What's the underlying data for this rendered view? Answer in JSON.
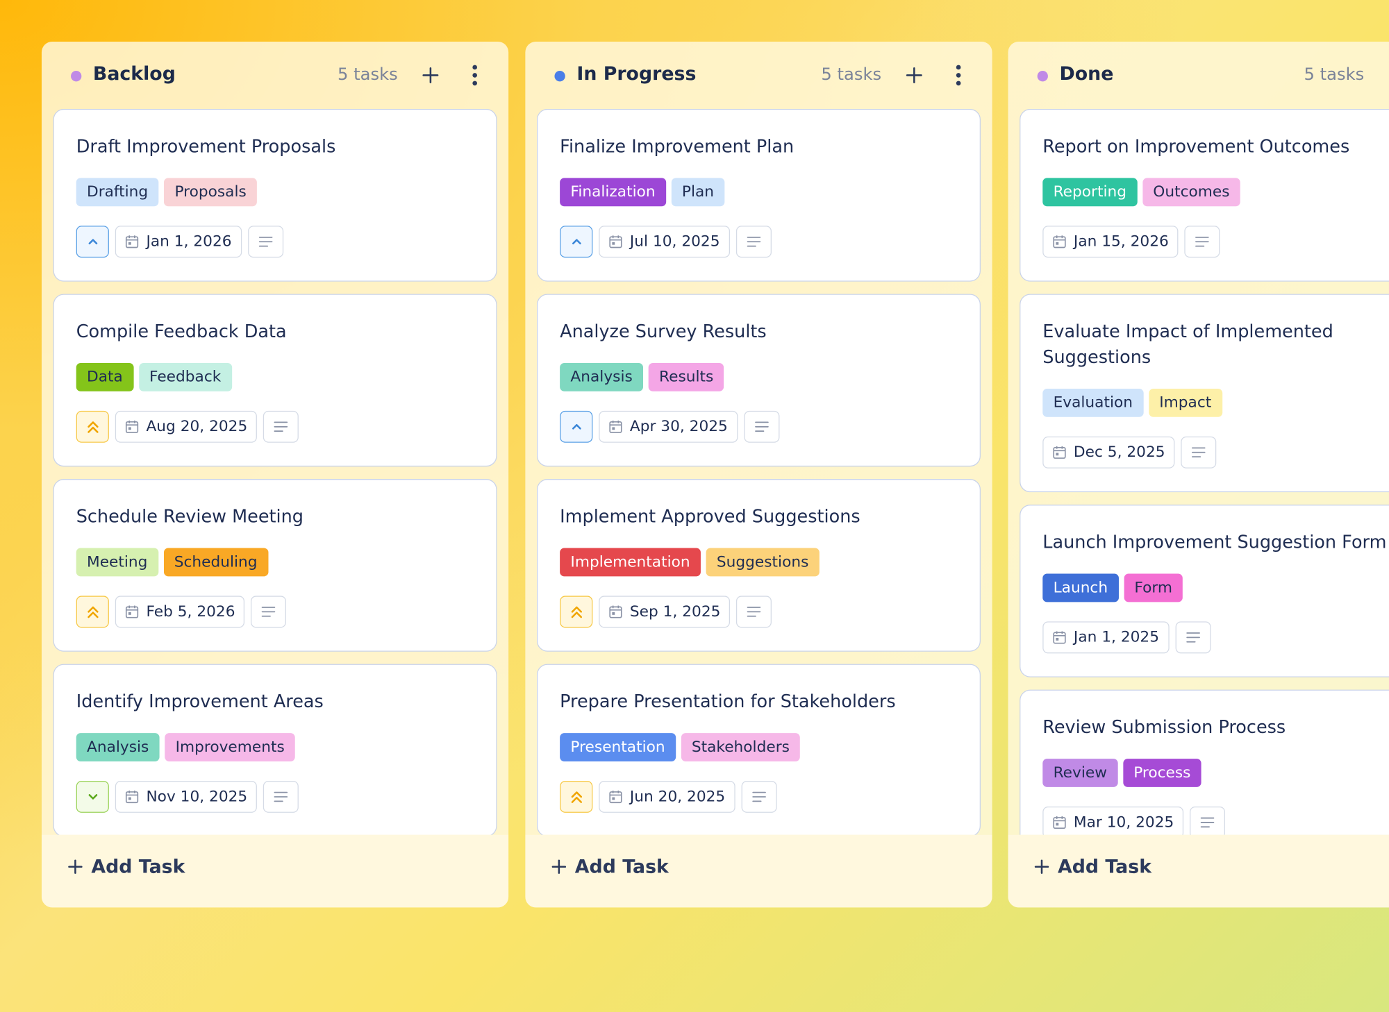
{
  "add_task": "Add Task",
  "columns": [
    {
      "name": "Backlog",
      "dot": "#c08ae6",
      "count": "5 tasks",
      "cards": [
        {
          "title": "Draft Improvement Proposals",
          "tags": [
            {
              "text": "Drafting",
              "color": "#cfe4fb"
            },
            {
              "text": "Proposals",
              "color": "#f9d3d6"
            }
          ],
          "date": "Jan 1, 2026"
        },
        {
          "title": "Compile Feedback Data",
          "tags": [
            {
              "text": "Data",
              "color": "#84c41a"
            },
            {
              "text": "Feedback",
              "color": "#c4f0e3"
            }
          ],
          "date": "Aug 20, 2025"
        },
        {
          "title": "Schedule Review Meeting",
          "tags": [
            {
              "text": "Meeting",
              "color": "#d6f0b0"
            },
            {
              "text": "Scheduling",
              "color": "#f9a825"
            }
          ],
          "date": "Feb 5, 2026"
        },
        {
          "title": "Identify Improvement Areas",
          "tags": [
            {
              "text": "Analysis",
              "color": "#7fd8c0"
            },
            {
              "text": "Improvements",
              "color": "#f6b8e8"
            }
          ],
          "date": "Nov 10, 2025"
        }
      ]
    },
    {
      "name": "In Progress",
      "dot": "#4a7ee8",
      "count": "5 tasks",
      "cards": [
        {
          "title": "Finalize Improvement Plan",
          "tags": [
            {
              "text": "Finalization",
              "color": "#9c47d6",
              "text_color": "#ffffff"
            },
            {
              "text": "Plan",
              "color": "#cfe4fb"
            }
          ],
          "date": "Jul 10, 2025"
        },
        {
          "title": "Analyze Survey Results",
          "tags": [
            {
              "text": "Analysis",
              "color": "#7fd8c0"
            },
            {
              "text": "Results",
              "color": "#f4a6e6"
            }
          ],
          "date": "Apr 30, 2025"
        },
        {
          "title": "Implement Approved Suggestions",
          "tags": [
            {
              "text": "Implementation",
              "color": "#e5484d",
              "text_color": "#ffffff"
            },
            {
              "text": "Suggestions",
              "color": "#fcd27a"
            }
          ],
          "date": "Sep 1, 2025"
        },
        {
          "title": "Prepare Presentation for Stakeholders",
          "tags": [
            {
              "text": "Presentation",
              "color": "#5b8def",
              "text_color": "#ffffff"
            },
            {
              "text": "Stakeholders",
              "color": "#f6b8e8"
            }
          ],
          "date": "Jun 20, 2025"
        }
      ]
    },
    {
      "name": "Done",
      "dot": "#c08ae6",
      "count": "5 tasks",
      "cards": [
        {
          "title": "Report on Improvement Outcomes",
          "tags": [
            {
              "text": "Reporting",
              "color": "#2ec4a0",
              "text_color": "#ffffff"
            },
            {
              "text": "Outcomes",
              "color": "#f6b8e8"
            }
          ],
          "date": "Jan 15, 2026"
        },
        {
          "title": "Evaluate Impact of Implemented Suggestions",
          "tags": [
            {
              "text": "Evaluation",
              "color": "#cfe4fb"
            },
            {
              "text": "Impact",
              "color": "#fdf0a8"
            }
          ],
          "date": "Dec 5, 2025"
        },
        {
          "title": "Launch Improvement Suggestion Form",
          "tags": [
            {
              "text": "Launch",
              "color": "#3e6fd8",
              "text_color": "#ffffff"
            },
            {
              "text": "Form",
              "color": "#f46fd3"
            }
          ],
          "date": "Jan 1, 2025"
        },
        {
          "title": "Review Submission Process",
          "tags": [
            {
              "text": "Review",
              "color": "#c08ae6"
            },
            {
              "text": "Process",
              "color": "#a64bd6",
              "text_color": "#ffffff"
            }
          ],
          "date": "Mar 10, 2025"
        }
      ]
    }
  ]
}
